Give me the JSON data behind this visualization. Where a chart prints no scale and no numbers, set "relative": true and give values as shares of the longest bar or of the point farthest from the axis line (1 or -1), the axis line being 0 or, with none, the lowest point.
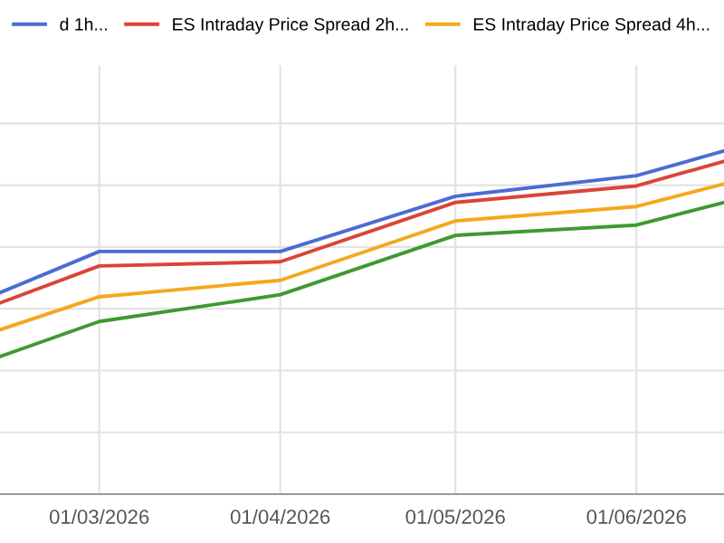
{
  "chart_data": {
    "type": "line",
    "relative": true,
    "x": [
      "2026-02-12",
      "2026-03-01",
      "2026-04-01",
      "2026-05-01",
      "2026-06-01",
      "2026-06-16"
    ],
    "xlim": [
      "2026-02-12",
      "2026-06-16"
    ],
    "xticks": [
      {
        "value": "2026-03-01",
        "label": "01/03/2026"
      },
      {
        "value": "2026-04-01",
        "label": "01/04/2026"
      },
      {
        "value": "2026-05-01",
        "label": "01/05/2026"
      },
      {
        "value": "2026-06-01",
        "label": "01/06/2026"
      }
    ],
    "series": [
      {
        "name": "d 1h...",
        "color": "#4a6cd4",
        "values": [
          0.587,
          0.707,
          0.707,
          0.868,
          0.928,
          1.0
        ]
      },
      {
        "name": "ES Intraday Price Spread 2h...",
        "color": "#db4437",
        "values": [
          0.557,
          0.665,
          0.677,
          0.85,
          0.898,
          0.97
        ]
      },
      {
        "name": "ES Intraday Price Spread 4h...",
        "color": "#f4a81d",
        "values": [
          0.479,
          0.575,
          0.623,
          0.796,
          0.838,
          0.904
        ]
      },
      {
        "color": "#3e9a2f",
        "values": [
          0.401,
          0.503,
          0.581,
          0.754,
          0.784,
          0.85
        ]
      }
    ],
    "grid": true,
    "legend": "top",
    "marker": "none",
    "line_style": "solid"
  }
}
